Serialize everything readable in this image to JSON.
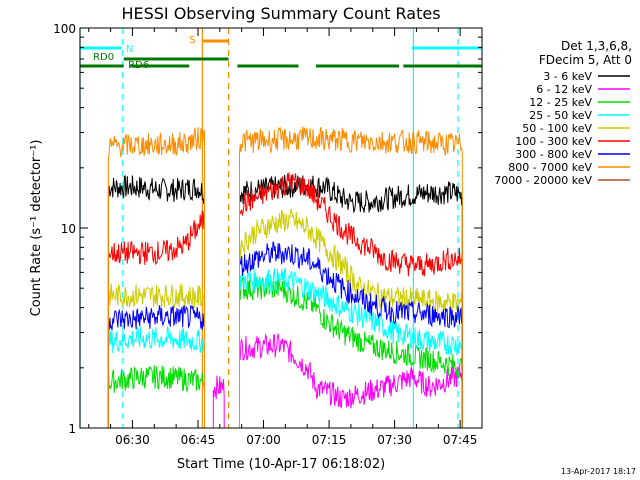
{
  "chart_data": {
    "type": "line",
    "title": "HESSI Observing Summary Count Rates",
    "xlabel": "Start Time (10-Apr-17 06:18:02)",
    "ylabel": "Count Rate (s⁻¹ detector⁻¹)",
    "yscale": "log",
    "ylim": [
      1,
      100
    ],
    "xlim_minutes": [
      0,
      92
    ],
    "x_ticks": [
      "06:30",
      "06:45",
      "07:00",
      "07:15",
      "07:30",
      "07:45"
    ],
    "y_ticks": [
      "1",
      "10",
      "100"
    ],
    "timestamp": "13-Apr-2017 18:17",
    "legend_header": [
      "Det 1,3,6,8,",
      "FDecim 5, Att 0"
    ],
    "series": [
      {
        "name": "3 - 6 keV",
        "color": "#000000",
        "segments": [
          {
            "x": [
              6.5,
              10,
              14,
              18,
              22,
              27,
              28.5
            ],
            "y": [
              16,
              16,
              16,
              15.5,
              15.5,
              16,
              15
            ]
          },
          {
            "x": [
              36.5,
              40,
              46,
              52,
              56,
              60,
              62,
              66,
              70,
              74,
              80,
              86,
              87.5
            ],
            "y": [
              15,
              15.5,
              16,
              16.5,
              16,
              14,
              13.5,
              13.5,
              14,
              14.5,
              15,
              15,
              14.5
            ]
          }
        ]
      },
      {
        "name": "6 - 12 keV",
        "color": "#ff00ff",
        "segments": [
          {
            "x": [
              30.5,
              33
            ],
            "y": [
              1.6,
              1.6
            ]
          },
          {
            "x": [
              36.5,
              46,
              48,
              52,
              54,
              60,
              70,
              76,
              80,
              86,
              87.5
            ],
            "y": [
              2.5,
              2.6,
              2.4,
              2.0,
              1.6,
              1.4,
              1.6,
              1.8,
              1.6,
              1.8,
              1.9
            ]
          }
        ]
      },
      {
        "name": "12 - 25 keV",
        "color": "#00dd00",
        "segments": [
          {
            "x": [
              6.5,
              14,
              20,
              28.5
            ],
            "y": [
              1.7,
              1.8,
              1.8,
              1.7
            ]
          },
          {
            "x": [
              36.5,
              46,
              50,
              54,
              56,
              60,
              66,
              72,
              80,
              87.5
            ],
            "y": [
              5.0,
              5.0,
              4.5,
              4.0,
              3.5,
              3.0,
              2.6,
              2.4,
              2.2,
              2.0
            ]
          }
        ]
      },
      {
        "name": "25 - 50 keV",
        "color": "#00ffff",
        "segments": [
          {
            "x": [
              6.5,
              12,
              20,
              28.5
            ],
            "y": [
              2.7,
              2.8,
              2.8,
              2.7
            ]
          },
          {
            "x": [
              36.5,
              44,
              48,
              52,
              56,
              60,
              66,
              72,
              80,
              87.5
            ],
            "y": [
              5.5,
              5.5,
              5.5,
              5.0,
              4.5,
              4.0,
              3.5,
              3.0,
              2.7,
              2.6
            ]
          }
        ]
      },
      {
        "name": "50 - 100 keV",
        "color": "#cccc00",
        "segments": [
          {
            "x": [
              6.5,
              14,
              22,
              28.5
            ],
            "y": [
              4.6,
              4.6,
              4.6,
              4.5
            ]
          },
          {
            "x": [
              36.5,
              40,
              44,
              48,
              52,
              56,
              60,
              64,
              70,
              76,
              80,
              87.5
            ],
            "y": [
              8.0,
              9.5,
              10.5,
              11.0,
              10.0,
              8.0,
              6.5,
              5.0,
              4.5,
              4.4,
              4.3,
              4.2
            ]
          }
        ]
      },
      {
        "name": "100 - 300 keV",
        "color": "#ff0000",
        "segments": [
          {
            "x": [
              6.5,
              14,
              20,
              24,
              26,
              28.5
            ],
            "y": [
              7.5,
              7.5,
              7.6,
              8.2,
              9.5,
              11.0
            ]
          },
          {
            "x": [
              36.5,
              40,
              44,
              48,
              52,
              54,
              58,
              62,
              66,
              70,
              76,
              80,
              84,
              87.5
            ],
            "y": [
              13.0,
              14.0,
              15.5,
              17.0,
              16.0,
              14.0,
              11.0,
              9.0,
              8.0,
              7.0,
              6.5,
              6.5,
              7.0,
              7.0
            ]
          }
        ]
      },
      {
        "name": "300 - 800 keV",
        "color": "#0000ff",
        "segments": [
          {
            "x": [
              6.5,
              12,
              18,
              24,
              28.5
            ],
            "y": [
              3.5,
              3.5,
              3.6,
              3.6,
              3.5
            ]
          },
          {
            "x": [
              36.5,
              40,
              44,
              48,
              52,
              56,
              60,
              66,
              72,
              80,
              87.5
            ],
            "y": [
              6.5,
              7.0,
              7.5,
              7.5,
              7.0,
              6.0,
              5.0,
              4.2,
              3.8,
              3.7,
              3.6
            ]
          }
        ]
      },
      {
        "name": "800 - 7000 keV",
        "color": "#ff8c00",
        "segments": [
          {
            "x": [
              6.5,
              12,
              18,
              24,
              27,
              28.5
            ],
            "y": [
              25.5,
              26,
              26,
              26.5,
              28,
              29
            ]
          },
          {
            "x": [
              36.5,
              44,
              52,
              60,
              68,
              76,
              82,
              87.5
            ],
            "y": [
              27,
              27.5,
              28,
              27.5,
              27,
              27,
              26.5,
              26
            ]
          }
        ]
      },
      {
        "name": "7000 - 20000 keV",
        "color": "#a0522d",
        "segments": []
      }
    ],
    "flags": [
      {
        "label": "N",
        "color": "#00ffff",
        "segments": [
          [
            0,
            9.5
          ],
          [
            76,
            92
          ]
        ]
      },
      {
        "label": "RD0",
        "color": "#007700",
        "segments": [
          [
            0,
            10
          ],
          [
            11.5,
            25
          ],
          [
            36,
            50
          ],
          [
            54,
            73
          ],
          [
            74,
            92
          ]
        ]
      },
      {
        "label": "RD6",
        "color": "#007700",
        "segments": [
          [
            10,
            34
          ]
        ]
      },
      {
        "label": "S",
        "color": "#ff8c00",
        "segments": [
          [
            28,
            34
          ]
        ]
      }
    ],
    "vlines": [
      {
        "x": 0,
        "color": "#00ffff",
        "style": "solid"
      },
      {
        "x": 9.8,
        "color": "#00ffff",
        "style": "dashed"
      },
      {
        "x": 28,
        "color": "#ff8c00",
        "style": "solid"
      },
      {
        "x": 34,
        "color": "#ff8c00",
        "style": "dashed"
      },
      {
        "x": 76.3,
        "color": "#00ffff",
        "style": "solid"
      },
      {
        "x": 86.5,
        "color": "#00ffff",
        "style": "dashed"
      }
    ]
  }
}
